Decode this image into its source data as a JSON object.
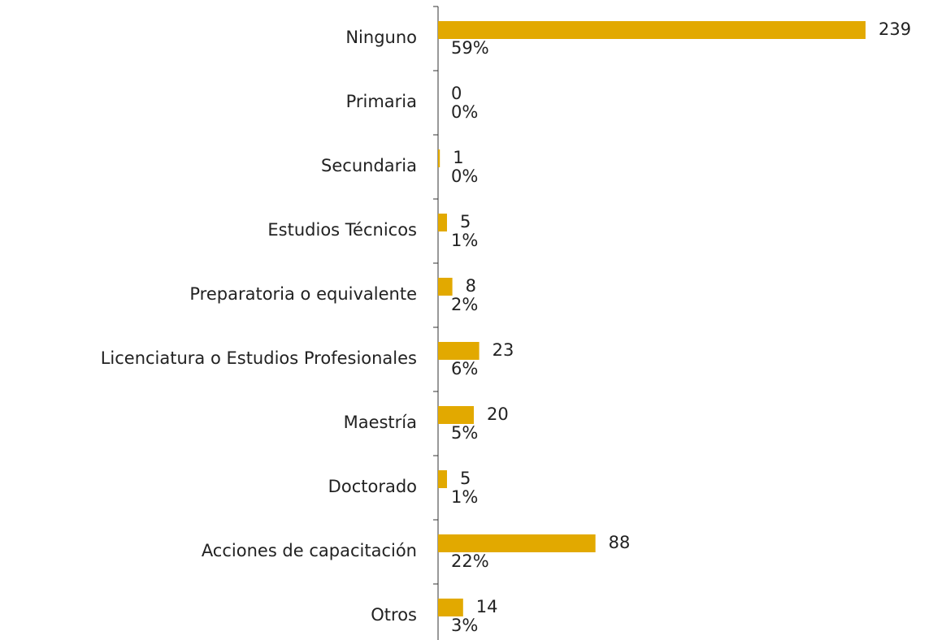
{
  "chart_data": {
    "type": "barh",
    "categories": [
      "Ninguno",
      "Primaria",
      "Secundaria",
      "Estudios Técnicos",
      "Preparatoria o equivalente",
      "Licenciatura o Estudios Profesionales",
      "Maestría",
      "Doctorado",
      "Acciones de capacitación",
      "Otros"
    ],
    "values": [
      239,
      0,
      1,
      5,
      8,
      23,
      20,
      5,
      88,
      14
    ],
    "percent_labels": [
      "59%",
      "0%",
      "0%",
      "1%",
      "2%",
      "6%",
      "5%",
      "1%",
      "22%",
      "3%"
    ],
    "color": "#e2a900",
    "xlim": [
      0,
      239
    ]
  }
}
